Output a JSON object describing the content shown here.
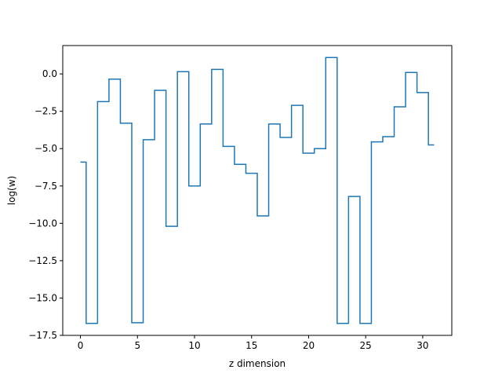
{
  "chart_data": {
    "type": "line",
    "drawstyle": "steps-mid",
    "title": "",
    "xlabel": "z dimension",
    "ylabel": "log(w)",
    "xlim": [
      -1.55,
      32.55
    ],
    "ylim": [
      -17.5,
      1.9
    ],
    "xticks": [
      0,
      5,
      10,
      15,
      20,
      25,
      30
    ],
    "xtick_labels": [
      "0",
      "5",
      "10",
      "15",
      "20",
      "25",
      "30"
    ],
    "yticks": [
      0.0,
      -2.5,
      -5.0,
      -7.5,
      -10.0,
      -12.5,
      -15.0,
      -17.5
    ],
    "ytick_labels": [
      "0.0",
      "−2.5",
      "−5.0",
      "−7.5",
      "−10.0",
      "−12.5",
      "−15.0",
      "−17.5"
    ],
    "grid": false,
    "legend": "none",
    "series": [
      {
        "color": "#1f77b4",
        "x": [
          0,
          1,
          2,
          3,
          4,
          5,
          6,
          7,
          8,
          9,
          10,
          11,
          12,
          13,
          14,
          15,
          16,
          17,
          18,
          19,
          20,
          21,
          22,
          23,
          24,
          25,
          26,
          27,
          28,
          29,
          30,
          31
        ],
        "y": [
          -5.9,
          -16.7,
          -1.85,
          -0.35,
          -3.3,
          -16.65,
          -4.4,
          -1.1,
          -10.2,
          0.15,
          -7.5,
          -3.35,
          0.3,
          -4.85,
          -6.05,
          -6.65,
          -9.5,
          -3.35,
          -4.25,
          -2.1,
          -5.3,
          -5.0,
          1.1,
          -16.7,
          -8.2,
          -16.7,
          -4.55,
          -4.2,
          -2.2,
          0.1,
          -1.25,
          -4.75
        ]
      }
    ]
  }
}
